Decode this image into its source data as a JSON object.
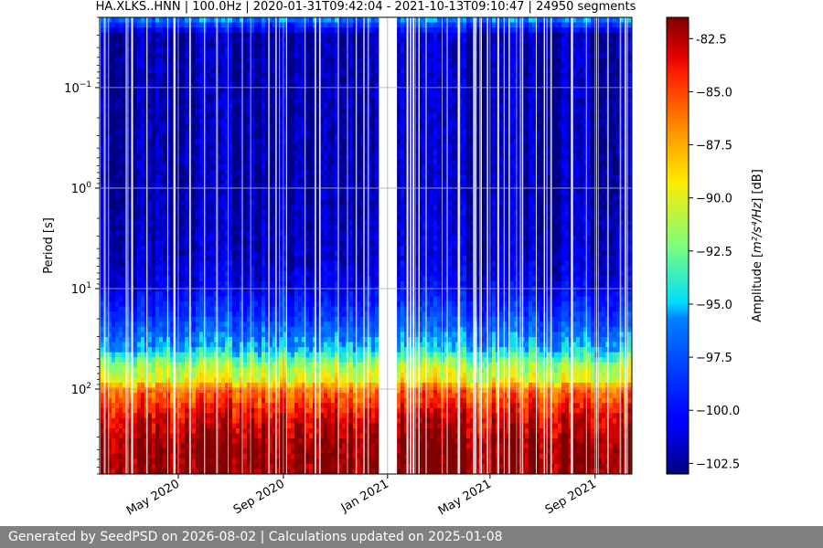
{
  "chart_data": {
    "type": "heatmap",
    "title": "HA.XLKS..HNN | 100.0Hz | 2020-01-31T09:42:04 - 2021-10-13T09:10:47 | 24950 segments",
    "ylabel": "Period [s]",
    "yscale": "log",
    "yaxis_inverted": true,
    "ylim": [
      0.02,
      700
    ],
    "y_major_ticks": [
      {
        "value": 0.1,
        "base": "10",
        "exp": "−1"
      },
      {
        "value": 1,
        "base": "10",
        "exp": "0"
      },
      {
        "value": 10,
        "base": "10",
        "exp": "1"
      },
      {
        "value": 100,
        "base": "10",
        "exp": "2"
      }
    ],
    "x_ticks": [
      "May 2020",
      "Sep 2020",
      "Jan 2021",
      "May 2021",
      "Sep 2021"
    ],
    "x_tick_dates": [
      "2020-05-01",
      "2020-09-01",
      "2021-01-01",
      "2021-05-01",
      "2021-09-01"
    ],
    "xlim": [
      "2020-01-31",
      "2021-10-13"
    ],
    "grid": true,
    "data_gap": [
      "2020-12-22",
      "2021-01-12"
    ],
    "colormap": "jet",
    "colorbar": {
      "label_prefix": "Amplitude [",
      "label_unit": "m²/s⁴/Hz",
      "label_suffix": "] [dB]",
      "range": [
        -103,
        -81.5
      ],
      "ticks": [
        "-82.5",
        "−85.0",
        "−87.5",
        "−90.0",
        "−92.5",
        "−95.0",
        "−97.5",
        "−100.0",
        "−102.5"
      ],
      "tick_values": [
        -82.5,
        -85.0,
        -87.5,
        -90.0,
        -92.5,
        -95.0,
        -97.5,
        -100.0,
        -102.5
      ]
    },
    "amplitude_profile": [
      {
        "period": 0.02,
        "db": -95.5
      },
      {
        "period": 0.03,
        "db": -102.0
      },
      {
        "period": 0.1,
        "db": -102.0
      },
      {
        "period": 1,
        "db": -102.0
      },
      {
        "period": 5,
        "db": -101.5
      },
      {
        "period": 10,
        "db": -100.5
      },
      {
        "period": 20,
        "db": -98.0
      },
      {
        "period": 40,
        "db": -95.0
      },
      {
        "period": 60,
        "db": -91.0
      },
      {
        "period": 80,
        "db": -90.0
      },
      {
        "period": 100,
        "db": -86.0
      },
      {
        "period": 200,
        "db": -83.0
      },
      {
        "period": 400,
        "db": -81.5
      }
    ]
  },
  "footer": {
    "text": "Generated by SeedPSD on 2026-08-02 | Calculations updated on 2025-01-08"
  }
}
